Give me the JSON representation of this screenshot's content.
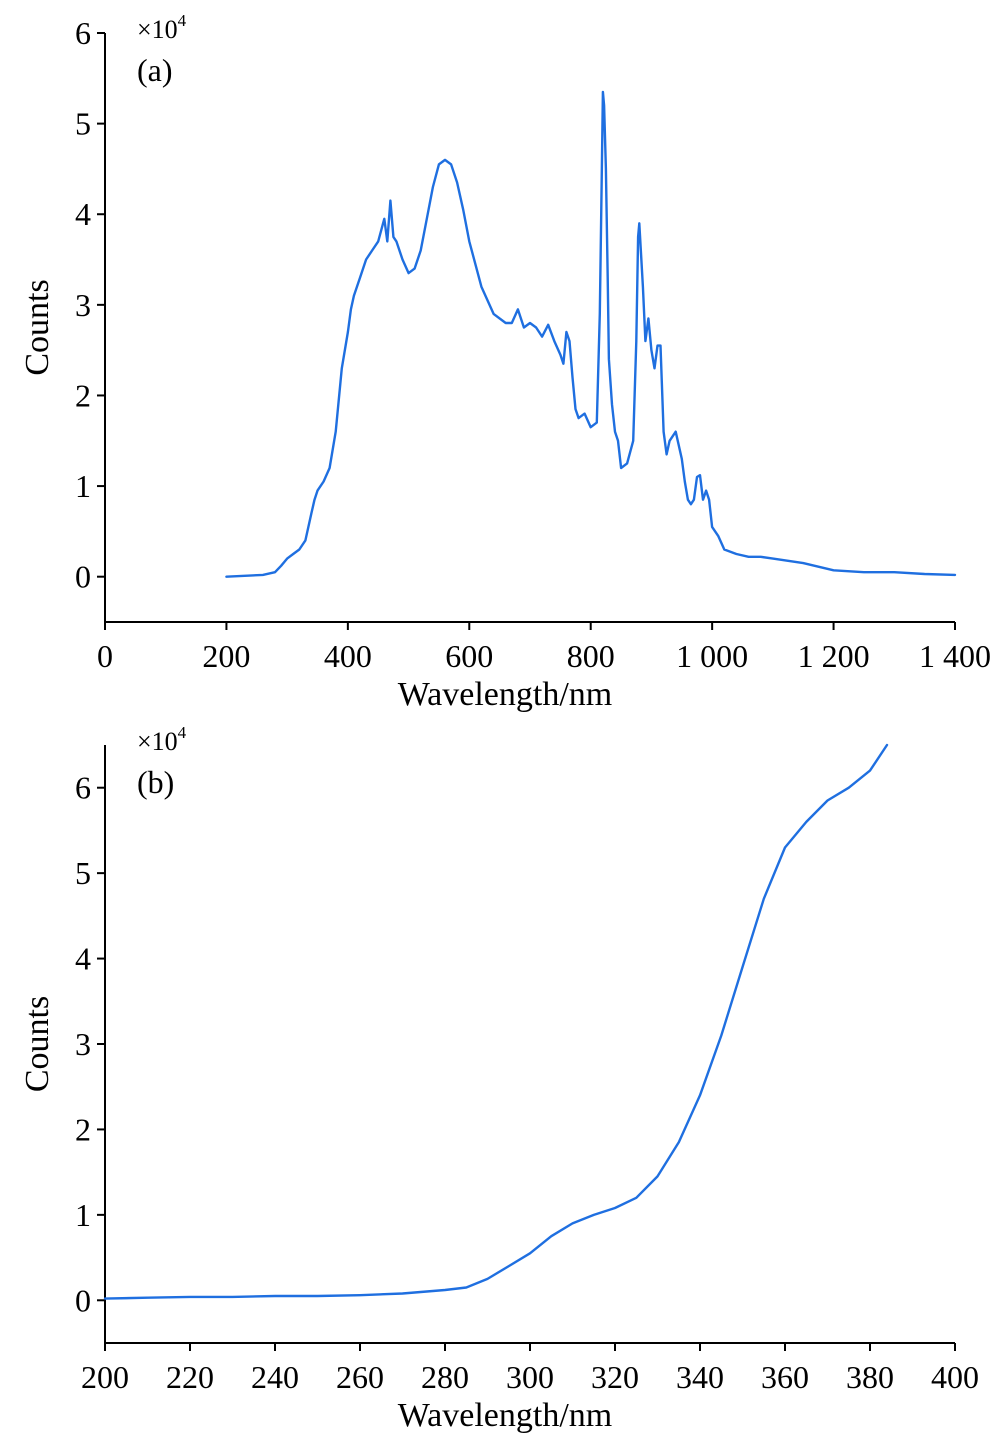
{
  "chart_data": [
    {
      "panel_label": "(a)",
      "type": "line",
      "xlabel": "Wavelength/nm",
      "ylabel": "Counts",
      "y_multiplier": "×10",
      "y_multiplier_exp": "4",
      "xlim": [
        0,
        1400
      ],
      "ylim": [
        -0.5,
        6
      ],
      "x_ticks": [
        0,
        200,
        400,
        600,
        800,
        1000,
        1200,
        1400
      ],
      "x_tick_labels": [
        "0",
        "200",
        "400",
        "600",
        "800",
        "1 000",
        "1 200",
        "1 400"
      ],
      "y_ticks": [
        0,
        1,
        2,
        3,
        4,
        5,
        6
      ],
      "y_tick_labels": [
        "0",
        "1",
        "2",
        "3",
        "4",
        "5",
        "6"
      ],
      "grid": false,
      "color": "#1f6fe0",
      "series": [
        {
          "x": [
            200,
            230,
            260,
            280,
            290,
            300,
            310,
            320,
            330,
            340,
            345,
            350,
            360,
            370,
            380,
            390,
            400,
            405,
            410,
            420,
            430,
            440,
            450,
            460,
            465,
            470,
            475,
            480,
            490,
            500,
            510,
            520,
            530,
            540,
            550,
            560,
            570,
            580,
            590,
            600,
            620,
            640,
            660,
            670,
            680,
            690,
            700,
            710,
            720,
            730,
            740,
            750,
            755,
            760,
            765,
            770,
            775,
            780,
            790,
            800,
            810,
            815,
            818,
            820,
            822,
            825,
            828,
            830,
            835,
            840,
            845,
            850,
            860,
            870,
            875,
            878,
            880,
            883,
            886,
            890,
            895,
            900,
            905,
            910,
            915,
            920,
            925,
            930,
            940,
            950,
            955,
            960,
            965,
            970,
            975,
            980,
            985,
            990,
            995,
            1000,
            1010,
            1020,
            1040,
            1060,
            1080,
            1100,
            1150,
            1200,
            1250,
            1300,
            1350,
            1400
          ],
          "y": [
            0.0,
            0.01,
            0.02,
            0.05,
            0.12,
            0.2,
            0.25,
            0.3,
            0.4,
            0.7,
            0.85,
            0.95,
            1.05,
            1.2,
            1.6,
            2.3,
            2.7,
            2.95,
            3.1,
            3.3,
            3.5,
            3.6,
            3.7,
            3.95,
            3.7,
            4.15,
            3.75,
            3.7,
            3.5,
            3.35,
            3.4,
            3.6,
            3.95,
            4.3,
            4.55,
            4.6,
            4.55,
            4.35,
            4.05,
            3.7,
            3.2,
            2.9,
            2.8,
            2.8,
            2.95,
            2.75,
            2.8,
            2.75,
            2.65,
            2.78,
            2.6,
            2.45,
            2.35,
            2.7,
            2.6,
            2.2,
            1.85,
            1.75,
            1.8,
            1.65,
            1.7,
            2.9,
            4.3,
            5.35,
            5.2,
            4.5,
            3.3,
            2.4,
            1.9,
            1.6,
            1.5,
            1.2,
            1.25,
            1.5,
            2.6,
            3.75,
            3.9,
            3.55,
            3.2,
            2.6,
            2.85,
            2.5,
            2.3,
            2.55,
            2.55,
            1.6,
            1.35,
            1.5,
            1.6,
            1.3,
            1.05,
            0.85,
            0.8,
            0.85,
            1.1,
            1.12,
            0.85,
            0.95,
            0.85,
            0.55,
            0.45,
            0.3,
            0.25,
            0.22,
            0.22,
            0.2,
            0.15,
            0.07,
            0.05,
            0.05,
            0.03,
            0.02
          ]
        }
      ]
    },
    {
      "panel_label": "(b)",
      "type": "line",
      "xlabel": "Wavelength/nm",
      "ylabel": "Counts",
      "y_multiplier": "×10",
      "y_multiplier_exp": "4",
      "xlim": [
        200,
        400
      ],
      "ylim": [
        -0.5,
        6.5
      ],
      "x_ticks": [
        200,
        220,
        240,
        260,
        280,
        300,
        320,
        340,
        360,
        380,
        400
      ],
      "x_tick_labels": [
        "200",
        "220",
        "240",
        "260",
        "280",
        "300",
        "320",
        "340",
        "360",
        "380",
        "400"
      ],
      "y_ticks": [
        0,
        1,
        2,
        3,
        4,
        5,
        6
      ],
      "y_tick_labels": [
        "0",
        "1",
        "2",
        "3",
        "4",
        "5",
        "6"
      ],
      "grid": false,
      "color": "#1f6fe0",
      "series": [
        {
          "x": [
            200,
            210,
            220,
            230,
            240,
            250,
            260,
            270,
            280,
            285,
            290,
            295,
            300,
            305,
            310,
            315,
            320,
            325,
            330,
            335,
            340,
            345,
            350,
            355,
            360,
            365,
            370,
            375,
            380,
            384
          ],
          "y": [
            0.02,
            0.03,
            0.04,
            0.04,
            0.05,
            0.05,
            0.06,
            0.08,
            0.12,
            0.15,
            0.25,
            0.4,
            0.55,
            0.75,
            0.9,
            1.0,
            1.08,
            1.2,
            1.45,
            1.85,
            2.4,
            3.1,
            3.9,
            4.7,
            5.3,
            5.6,
            5.85,
            6.0,
            6.2,
            6.5
          ]
        }
      ]
    }
  ]
}
